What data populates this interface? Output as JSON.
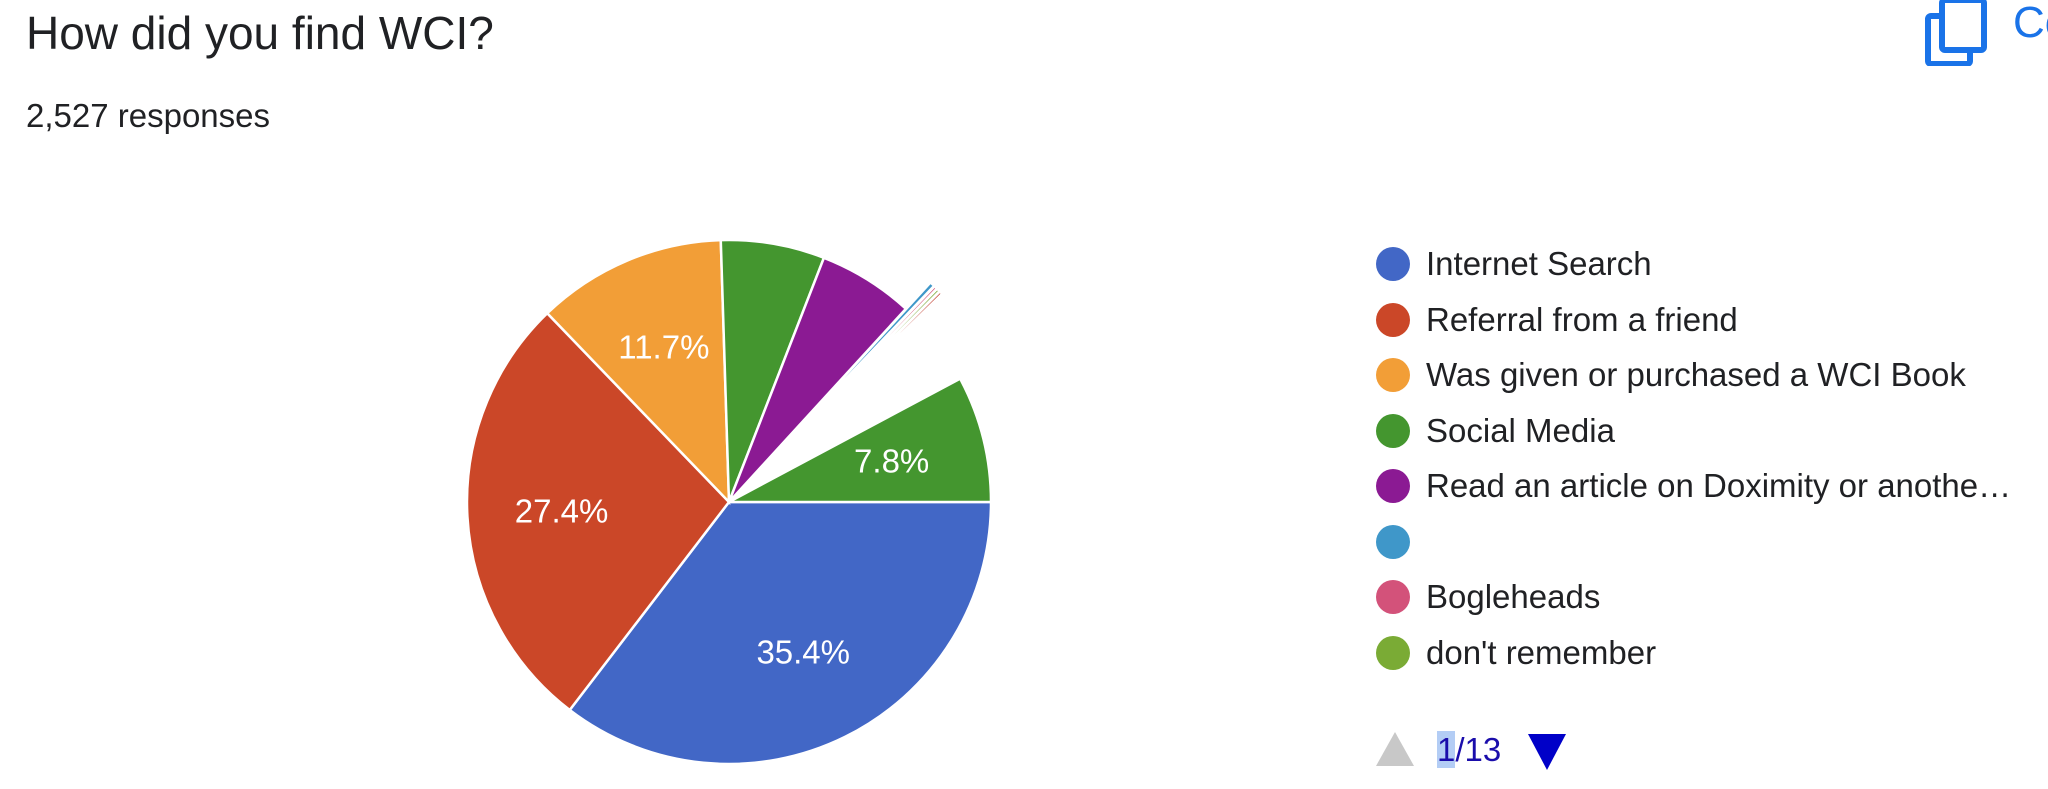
{
  "header": {
    "title": "How did you find WCI?",
    "responses": "2,527 responses",
    "copy_label": "Co"
  },
  "chart_data": {
    "type": "pie",
    "slices": [
      {
        "label": "Internet Search",
        "percent": 35.4,
        "color": "#4267c6",
        "display": "35.4%",
        "exploded": false
      },
      {
        "label": "Referral from a friend",
        "percent": 27.4,
        "color": "#cb4728",
        "display": "27.4%",
        "exploded": false
      },
      {
        "label": "Was given or purchased a WCI Book",
        "percent": 11.7,
        "color": "#f29e37",
        "display": "11.7%",
        "exploded": false
      },
      {
        "label": "Social Media",
        "percent": 6.4,
        "color": "#44962f",
        "display": "",
        "exploded": false
      },
      {
        "label": "Read an article on Doximity or anothe…",
        "percent": 5.9,
        "color": "#8b1a93",
        "display": "",
        "exploded": false
      },
      {
        "label": "",
        "percent": 0.3,
        "color": "#3f97c9",
        "display": "",
        "exploded": true
      },
      {
        "label": "Bogleheads",
        "percent": 0.2,
        "color": "#d3527a",
        "display": "",
        "exploded": true
      },
      {
        "label": "don't remember",
        "percent": 0.2,
        "color": "#7aab35",
        "display": "",
        "exploded": true
      },
      {
        "label": "",
        "percent": 0.2,
        "color": "#c0392b",
        "display": "",
        "exploded": true
      },
      {
        "label": "",
        "percent": 4.5,
        "color": "#ffffff",
        "display": "",
        "exploded": true
      },
      {
        "label": "",
        "percent": 7.8,
        "color": "#44962f",
        "display": "7.8%",
        "exploded": false
      }
    ],
    "legend": [
      {
        "label": "Internet Search",
        "color": "#4267c6"
      },
      {
        "label": "Referral from a friend",
        "color": "#cb4728"
      },
      {
        "label": "Was given or purchased a WCI Book",
        "color": "#f29e37"
      },
      {
        "label": "Social Media",
        "color": "#44962f"
      },
      {
        "label": "Read an article on Doximity or anothe…",
        "color": "#8b1a93"
      },
      {
        "label": "",
        "color": "#3f97c9"
      },
      {
        "label": "Bogleheads",
        "color": "#d3527a"
      },
      {
        "label": "don't remember",
        "color": "#7aab35"
      }
    ]
  },
  "pager": {
    "current": "1",
    "text": "/13"
  }
}
